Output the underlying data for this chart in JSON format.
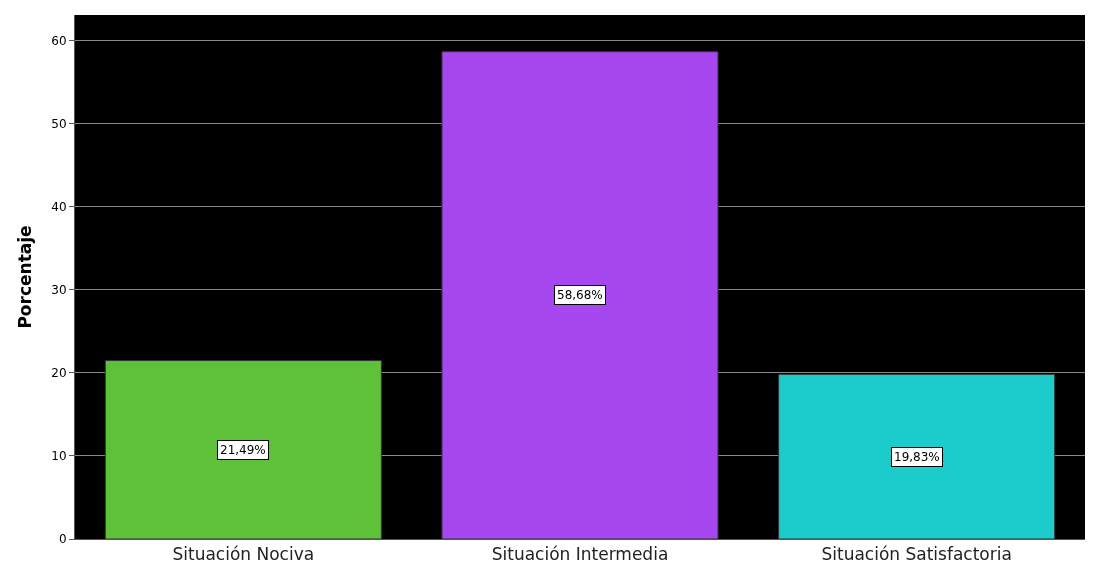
{
  "chart_data": {
    "type": "bar",
    "ylabel": "Porcentaje",
    "categories": [
      "Situación Nociva",
      "Situación Intermedia",
      "Situación Satisfactoria"
    ],
    "values": [
      21.49,
      58.68,
      19.83
    ],
    "colors": [
      "#5ec13a",
      "#a747f0",
      "#1ccccc"
    ],
    "value_labels": [
      "21,49%",
      "58,68%",
      "19,83%"
    ],
    "ylim": [
      0,
      63.1
    ],
    "yticks": [
      0,
      10,
      20,
      30,
      40,
      50,
      60
    ],
    "grid": "y",
    "legend": false
  }
}
